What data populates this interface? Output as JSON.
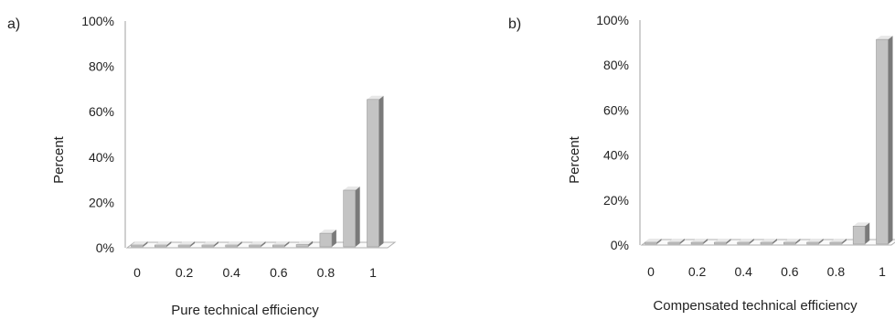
{
  "chart_data": [
    {
      "panel_label": "a)",
      "type": "bar",
      "categories": [
        "0",
        "0.1",
        "0.2",
        "0.3",
        "0.4",
        "0.5",
        "0.6",
        "0.7",
        "0.8",
        "0.9",
        "1"
      ],
      "tick_labels": [
        "0",
        "0.2",
        "0.4",
        "0.6",
        "0.8",
        "1"
      ],
      "values": [
        0,
        0,
        0,
        0,
        0,
        0,
        0,
        1,
        6,
        25,
        65
      ],
      "xlabel": "Pure technical efficiency",
      "ylabel": "Percent",
      "ylim": [
        0,
        100
      ],
      "yticks": [
        "0%",
        "20%",
        "40%",
        "60%",
        "80%",
        "100%"
      ],
      "grid": false,
      "legend": "none"
    },
    {
      "panel_label": "b)",
      "type": "bar",
      "categories": [
        "0",
        "0.1",
        "0.2",
        "0.3",
        "0.4",
        "0.5",
        "0.6",
        "0.7",
        "0.8",
        "0.9",
        "1"
      ],
      "tick_labels": [
        "0",
        "0.2",
        "0.4",
        "0.6",
        "0.8",
        "1"
      ],
      "values": [
        0,
        0,
        0,
        0,
        0,
        0,
        0,
        0,
        0,
        8,
        91
      ],
      "xlabel": "Compensated technical efficiency",
      "ylabel": "Percent",
      "ylim": [
        0,
        100
      ],
      "yticks": [
        "0%",
        "20%",
        "40%",
        "60%",
        "80%",
        "100%"
      ],
      "grid": false,
      "legend": "none"
    }
  ],
  "colors": {
    "bar_front": "#c4c4c4",
    "bar_side": "#7a7a7a",
    "bar_top": "#e8e8e8",
    "axis": "#b0b0b0"
  }
}
